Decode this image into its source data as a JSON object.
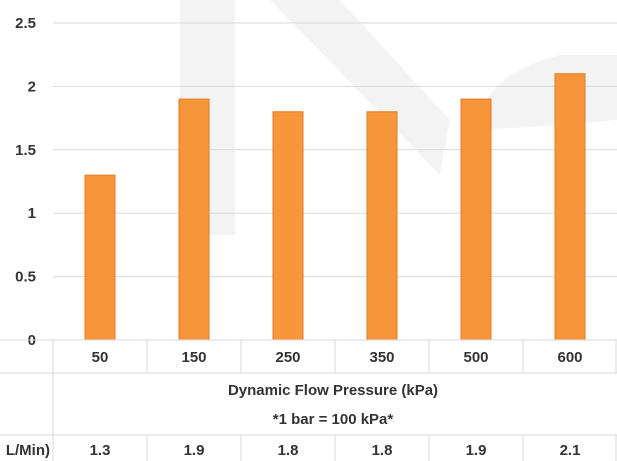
{
  "chart_data": {
    "type": "bar",
    "categories": [
      "50",
      "150",
      "250",
      "350",
      "500",
      "600"
    ],
    "values": [
      1.3,
      1.9,
      1.8,
      1.8,
      1.9,
      2.1
    ],
    "ylim": [
      0,
      2.5
    ],
    "yticks": [
      "0",
      "0.5",
      "1",
      "1.5",
      "2",
      "2.5"
    ],
    "xlabel": "Dynamic Flow Pressure (kPa)",
    "xlabel_note": "*1 bar = 100 kPa*",
    "table_row_label": "L/Min)",
    "table_row_values": [
      "1.3",
      "1.9",
      "1.8",
      "1.8",
      "1.9",
      "2.1"
    ],
    "grid": true,
    "bar_color": "#f7953b",
    "bar_border_color": "#e07d26",
    "grid_color": "#d9d9d9",
    "watermark_color": "#f2f2f2"
  }
}
